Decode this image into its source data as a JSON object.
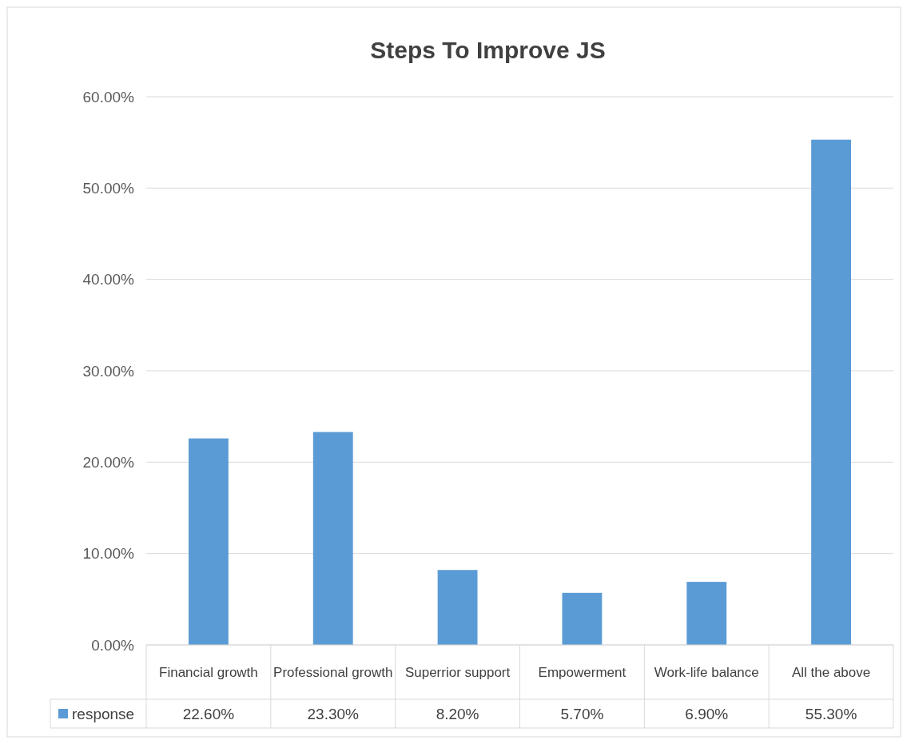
{
  "chart_data": {
    "type": "bar",
    "title": "Steps To Improve JS",
    "categories": [
      "Financial growth",
      "Professional growth",
      "Superrior support",
      "Empowerment",
      "Work-life balance",
      "All the above"
    ],
    "series": [
      {
        "name": "response",
        "color": "#5b9bd5",
        "values": [
          22.6,
          23.3,
          8.2,
          5.7,
          6.9,
          55.3
        ],
        "value_labels": [
          "22.60%",
          "23.30%",
          "8.20%",
          "5.70%",
          "6.90%",
          "55.30%"
        ]
      }
    ],
    "ylim": [
      0,
      60
    ],
    "yticks": [
      {
        "value": 0,
        "label": "0.00%"
      },
      {
        "value": 10,
        "label": "10.00%"
      },
      {
        "value": 20,
        "label": "20.00%"
      },
      {
        "value": 30,
        "label": "30.00%"
      },
      {
        "value": 40,
        "label": "40.00%"
      },
      {
        "value": 50,
        "label": "50.00%"
      },
      {
        "value": 60,
        "label": "60.00%"
      }
    ],
    "grid": "y",
    "legend": "bottom"
  }
}
